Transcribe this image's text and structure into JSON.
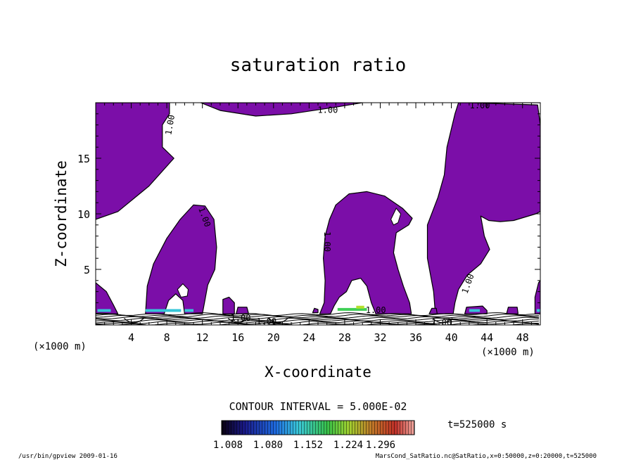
{
  "chart_data": {
    "type": "contour",
    "title": "saturation ratio",
    "xlabel": "X-coordinate",
    "ylabel": "Z-coordinate",
    "x_unit_left": "(×1000 m)",
    "x_unit_right": "(×1000 m)",
    "xlim": [
      0,
      50
    ],
    "ylim": [
      0,
      20
    ],
    "x_ticks": [
      4,
      8,
      12,
      16,
      20,
      24,
      28,
      32,
      36,
      40,
      44,
      48
    ],
    "y_ticks": [
      5,
      10,
      15
    ],
    "contour_labels": [
      "1.00",
      "1.00",
      "1.00",
      "1.00",
      "1.00",
      "1.00",
      "1.00",
      "1.00",
      "1.00",
      "1.00"
    ],
    "contour_interval_text": "CONTOUR INTERVAL = 5.000E-02",
    "colorbar": {
      "ticks": [
        "1.008",
        "1.080",
        "1.152",
        "1.224",
        "1.296"
      ],
      "min": 1.008,
      "max": 1.332
    },
    "time_text": "t=525000 s",
    "fill_color": "#7b0ea8",
    "regions": [
      {
        "name": "left-upper",
        "points": [
          [
            0,
            20
          ],
          [
            8.3,
            20
          ],
          [
            8.3,
            19
          ],
          [
            7.5,
            18
          ],
          [
            7.5,
            16
          ],
          [
            8.8,
            15
          ],
          [
            6,
            12.5
          ],
          [
            2.5,
            10.2
          ],
          [
            0,
            9.5
          ]
        ]
      },
      {
        "name": "top-center",
        "points": [
          [
            11.8,
            20
          ],
          [
            30,
            20
          ],
          [
            27,
            19.6
          ],
          [
            22,
            19
          ],
          [
            18,
            18.8
          ],
          [
            14,
            19.3
          ]
        ]
      },
      {
        "name": "top-right",
        "points": [
          [
            42,
            20
          ],
          [
            50,
            20
          ],
          [
            50,
            20
          ],
          [
            40.8,
            20
          ],
          [
            40.4,
            19
          ],
          [
            39.5,
            16
          ],
          [
            39.2,
            13.5
          ],
          [
            38.5,
            11.5
          ],
          [
            37.3,
            9
          ],
          [
            37.3,
            6
          ],
          [
            38,
            3
          ],
          [
            38.2,
            1
          ],
          [
            40.2,
            1
          ],
          [
            40.4,
            2
          ],
          [
            40.8,
            3.2
          ],
          [
            41.8,
            4.5
          ],
          [
            43.3,
            5.5
          ],
          [
            44.3,
            6.8
          ],
          [
            43.7,
            8
          ],
          [
            43.3,
            9.8
          ],
          [
            44.2,
            9.4
          ],
          [
            45.5,
            9.3
          ],
          [
            47,
            9.4
          ],
          [
            49.5,
            10
          ],
          [
            50,
            10.2
          ],
          [
            50,
            18
          ],
          [
            49.7,
            19.8
          ]
        ]
      },
      {
        "name": "hump-10",
        "points": [
          [
            5.6,
            1
          ],
          [
            5.8,
            3.5
          ],
          [
            6.5,
            5.5
          ],
          [
            8,
            7.8
          ],
          [
            9.5,
            9.5
          ],
          [
            11,
            10.8
          ],
          [
            12.3,
            10.7
          ],
          [
            13.3,
            9.5
          ],
          [
            13.6,
            7
          ],
          [
            13.4,
            5
          ],
          [
            12.6,
            3.6
          ],
          [
            12,
            1
          ],
          [
            10,
            1
          ],
          [
            9.8,
            2.2
          ],
          [
            9,
            2.8
          ],
          [
            8.2,
            2.2
          ],
          [
            7.7,
            1
          ]
        ]
      },
      {
        "name": "hump-30",
        "points": [
          [
            25.2,
            1
          ],
          [
            25.7,
            2
          ],
          [
            25.8,
            4
          ],
          [
            25.6,
            6
          ],
          [
            25.8,
            8
          ],
          [
            26.3,
            9.5
          ],
          [
            27,
            10.8
          ],
          [
            28.5,
            11.8
          ],
          [
            30.5,
            12
          ],
          [
            32.5,
            11.6
          ],
          [
            34.5,
            10.5
          ],
          [
            35.6,
            9.6
          ],
          [
            35.2,
            9
          ],
          [
            33.8,
            8.3
          ],
          [
            33.5,
            6.5
          ],
          [
            34,
            5
          ],
          [
            34.6,
            3.5
          ],
          [
            35.3,
            2
          ],
          [
            35.5,
            1
          ],
          [
            31.5,
            1
          ],
          [
            31,
            2
          ],
          [
            30.5,
            3.5
          ],
          [
            29.8,
            4.2
          ],
          [
            28.8,
            4
          ],
          [
            28.2,
            3
          ],
          [
            27.4,
            2.5
          ],
          [
            26.8,
            1.7
          ],
          [
            26.4,
            1
          ]
        ]
      },
      {
        "name": "right-edge-low",
        "points": [
          [
            49.4,
            1
          ],
          [
            49.4,
            2.5
          ],
          [
            49.8,
            3.8
          ],
          [
            50,
            4
          ],
          [
            50,
            1
          ]
        ]
      },
      {
        "name": "left-edge-low",
        "points": [
          [
            0,
            1
          ],
          [
            0,
            3.8
          ],
          [
            1.2,
            3
          ],
          [
            2,
            1.8
          ],
          [
            2.5,
            1
          ]
        ]
      },
      {
        "name": "blob-14",
        "points": [
          [
            14.3,
            1
          ],
          [
            14.3,
            2.3
          ],
          [
            15,
            2.5
          ],
          [
            15.6,
            2
          ],
          [
            15.6,
            1
          ]
        ]
      },
      {
        "name": "blob-16",
        "points": [
          [
            15.8,
            1
          ],
          [
            16,
            1.6
          ],
          [
            17,
            1.6
          ],
          [
            17.2,
            1
          ]
        ]
      },
      {
        "name": "blob-26",
        "points": [
          [
            24.4,
            1.1
          ],
          [
            24.6,
            1.5
          ],
          [
            25,
            1.4
          ],
          [
            25,
            1.1
          ]
        ]
      },
      {
        "name": "blob-38",
        "points": [
          [
            37.5,
            1
          ],
          [
            37.8,
            1.5
          ],
          [
            38.3,
            1.5
          ],
          [
            38.4,
            1
          ]
        ]
      },
      {
        "name": "blob-41",
        "points": [
          [
            41.5,
            1
          ],
          [
            41.7,
            1.6
          ],
          [
            43.5,
            1.7
          ],
          [
            44,
            1.3
          ],
          [
            44,
            1
          ]
        ]
      },
      {
        "name": "blob-46",
        "points": [
          [
            46.2,
            1
          ],
          [
            46.4,
            1.6
          ],
          [
            47.4,
            1.6
          ],
          [
            47.5,
            1
          ]
        ]
      }
    ],
    "white_holes": [
      {
        "name": "hole-10",
        "points": [
          [
            9.2,
            3.2
          ],
          [
            9.8,
            3.7
          ],
          [
            10.4,
            3.2
          ],
          [
            10.3,
            2.6
          ],
          [
            9.6,
            2.5
          ]
        ]
      },
      {
        "name": "hole-34",
        "points": [
          [
            33.2,
            9.5
          ],
          [
            33.8,
            10.5
          ],
          [
            34.3,
            10
          ],
          [
            34,
            9.2
          ],
          [
            33.5,
            9
          ]
        ]
      }
    ],
    "highlights": [
      {
        "x0": 0.2,
        "x1": 1.7,
        "y": 1.3,
        "color": "#36c6d8"
      },
      {
        "x0": 5.6,
        "x1": 9.6,
        "y": 1.3,
        "color": "#36c6d8"
      },
      {
        "x0": 10,
        "x1": 11,
        "y": 1.3,
        "color": "#36c6d8"
      },
      {
        "x0": 27.2,
        "x1": 30.5,
        "y": 1.4,
        "color": "#3fcf56"
      },
      {
        "x0": 29.3,
        "x1": 30.2,
        "y": 1.6,
        "color": "#b5e02b"
      },
      {
        "x0": 42,
        "x1": 43.2,
        "y": 1.3,
        "color": "#36c6d8"
      },
      {
        "x0": 49.6,
        "x1": 50,
        "y": 1.3,
        "color": "#36c6d8"
      }
    ]
  },
  "footer": {
    "left": "/usr/bin/gpview  2009-01-16",
    "right": "MarsCond_SatRatio.nc@SatRatio,x=0:50000,z=0:20000,t=525000"
  }
}
